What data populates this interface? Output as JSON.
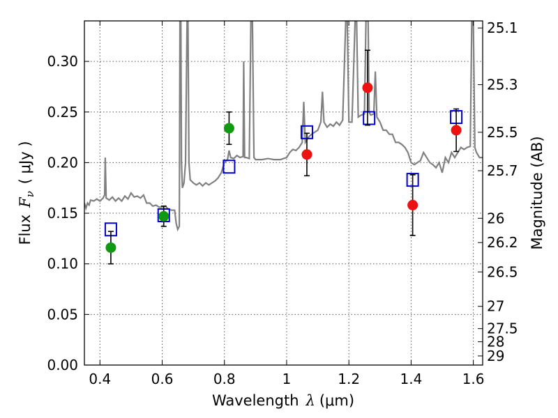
{
  "chart_data": {
    "type": "scatter",
    "title": "",
    "xlabel_text": "Wavelength",
    "xlabel_symbol": "λ",
    "xlabel_unit": "(μm)",
    "ylabel_text": "Flux",
    "ylabel_symbol": "F",
    "ylabel_sub": "ν",
    "ylabel_unit": "( μJy )",
    "y2label": "Magnitude (AB)",
    "xlim": [
      0.35,
      1.63
    ],
    "ylim": [
      0.0,
      0.34
    ],
    "grid": true,
    "x_ticks": [
      0.4,
      0.6,
      0.8,
      1.0,
      1.2,
      1.4,
      1.6
    ],
    "x_tick_labels": [
      "0.4",
      "0.6",
      "0.8",
      "1",
      "1.2",
      "1.4",
      "1.6"
    ],
    "y_ticks": [
      0.0,
      0.05,
      0.1,
      0.15,
      0.2,
      0.25,
      0.3
    ],
    "y_tick_labels": [
      "0.00",
      "0.05",
      "0.10",
      "0.15",
      "0.20",
      "0.25",
      "0.30"
    ],
    "mag_ticks": [
      {
        "label": "25.1",
        "flux": 0.333
      },
      {
        "label": "25.3",
        "flux": 0.277
      },
      {
        "label": "25.5",
        "flux": 0.23
      },
      {
        "label": "25.7",
        "flux": 0.192
      },
      {
        "label": "26",
        "flux": 0.145
      },
      {
        "label": "26.2",
        "flux": 0.121
      },
      {
        "label": "26.5",
        "flux": 0.092
      },
      {
        "label": "27",
        "flux": 0.058
      },
      {
        "label": "27.5",
        "flux": 0.036
      },
      {
        "label": "28",
        "flux": 0.023
      },
      {
        "label": "29",
        "flux": 0.009
      }
    ],
    "colors": {
      "spectrum": "#808080",
      "model_box": "#0000cc",
      "green_point": "#119911",
      "red_point": "#ee1111",
      "errorbar": "#000000",
      "grid": "#555555"
    },
    "series": [
      {
        "name": "model photometry",
        "marker": "open-square",
        "points": [
          {
            "x": 0.435,
            "y": 0.134
          },
          {
            "x": 0.605,
            "y": 0.148
          },
          {
            "x": 0.815,
            "y": 0.196
          },
          {
            "x": 1.065,
            "y": 0.23
          },
          {
            "x": 1.265,
            "y": 0.244
          },
          {
            "x": 1.405,
            "y": 0.183
          },
          {
            "x": 1.545,
            "y": 0.245
          }
        ]
      },
      {
        "name": "observed (green)",
        "marker": "filled-circle",
        "color_key": "green_point",
        "points": [
          {
            "x": 0.435,
            "y": 0.116,
            "err": 0.016
          },
          {
            "x": 0.605,
            "y": 0.147,
            "err": 0.01
          },
          {
            "x": 0.815,
            "y": 0.234,
            "err": 0.016
          }
        ]
      },
      {
        "name": "observed (red)",
        "marker": "filled-circle",
        "color_key": "red_point",
        "points": [
          {
            "x": 1.065,
            "y": 0.208,
            "err": 0.021
          },
          {
            "x": 1.26,
            "y": 0.274,
            "err": 0.037
          },
          {
            "x": 1.405,
            "y": 0.158,
            "err": 0.03
          },
          {
            "x": 1.545,
            "y": 0.232,
            "err": 0.021
          }
        ]
      }
    ],
    "spectrum": [
      [
        0.35,
        0.16
      ],
      [
        0.355,
        0.155
      ],
      [
        0.36,
        0.16
      ],
      [
        0.365,
        0.158
      ],
      [
        0.37,
        0.163
      ],
      [
        0.38,
        0.162
      ],
      [
        0.39,
        0.164
      ],
      [
        0.4,
        0.162
      ],
      [
        0.41,
        0.165
      ],
      [
        0.415,
        0.168
      ],
      [
        0.417,
        0.205
      ],
      [
        0.42,
        0.165
      ],
      [
        0.43,
        0.163
      ],
      [
        0.44,
        0.166
      ],
      [
        0.45,
        0.162
      ],
      [
        0.46,
        0.165
      ],
      [
        0.47,
        0.162
      ],
      [
        0.48,
        0.167
      ],
      [
        0.49,
        0.164
      ],
      [
        0.5,
        0.17
      ],
      [
        0.51,
        0.166
      ],
      [
        0.52,
        0.167
      ],
      [
        0.53,
        0.165
      ],
      [
        0.54,
        0.168
      ],
      [
        0.55,
        0.16
      ],
      [
        0.56,
        0.16
      ],
      [
        0.57,
        0.157
      ],
      [
        0.58,
        0.158
      ],
      [
        0.59,
        0.156
      ],
      [
        0.6,
        0.156
      ],
      [
        0.61,
        0.157
      ],
      [
        0.62,
        0.154
      ],
      [
        0.63,
        0.153
      ],
      [
        0.64,
        0.153
      ],
      [
        0.645,
        0.14
      ],
      [
        0.65,
        0.134
      ],
      [
        0.655,
        0.137
      ],
      [
        0.657,
        0.34
      ],
      [
        0.66,
        0.34
      ],
      [
        0.662,
        0.2
      ],
      [
        0.665,
        0.175
      ],
      [
        0.67,
        0.18
      ],
      [
        0.675,
        0.2
      ],
      [
        0.68,
        0.34
      ],
      [
        0.683,
        0.34
      ],
      [
        0.686,
        0.2
      ],
      [
        0.69,
        0.183
      ],
      [
        0.7,
        0.18
      ],
      [
        0.71,
        0.178
      ],
      [
        0.72,
        0.18
      ],
      [
        0.73,
        0.177
      ],
      [
        0.74,
        0.18
      ],
      [
        0.75,
        0.178
      ],
      [
        0.76,
        0.18
      ],
      [
        0.77,
        0.182
      ],
      [
        0.78,
        0.185
      ],
      [
        0.79,
        0.19
      ],
      [
        0.8,
        0.2
      ],
      [
        0.81,
        0.203
      ],
      [
        0.815,
        0.212
      ],
      [
        0.82,
        0.205
      ],
      [
        0.83,
        0.204
      ],
      [
        0.84,
        0.207
      ],
      [
        0.85,
        0.205
      ],
      [
        0.86,
        0.206
      ],
      [
        0.862,
        0.3
      ],
      [
        0.865,
        0.205
      ],
      [
        0.87,
        0.205
      ],
      [
        0.88,
        0.204
      ],
      [
        0.885,
        0.34
      ],
      [
        0.89,
        0.34
      ],
      [
        0.895,
        0.205
      ],
      [
        0.9,
        0.203
      ],
      [
        0.92,
        0.203
      ],
      [
        0.94,
        0.204
      ],
      [
        0.96,
        0.203
      ],
      [
        0.98,
        0.203
      ],
      [
        1.0,
        0.205
      ],
      [
        1.01,
        0.21
      ],
      [
        1.02,
        0.213
      ],
      [
        1.03,
        0.212
      ],
      [
        1.04,
        0.215
      ],
      [
        1.05,
        0.22
      ],
      [
        1.055,
        0.26
      ],
      [
        1.06,
        0.22
      ],
      [
        1.07,
        0.225
      ],
      [
        1.08,
        0.228
      ],
      [
        1.09,
        0.23
      ],
      [
        1.1,
        0.232
      ],
      [
        1.11,
        0.24
      ],
      [
        1.115,
        0.27
      ],
      [
        1.12,
        0.24
      ],
      [
        1.13,
        0.235
      ],
      [
        1.14,
        0.238
      ],
      [
        1.15,
        0.236
      ],
      [
        1.16,
        0.24
      ],
      [
        1.17,
        0.237
      ],
      [
        1.18,
        0.242
      ],
      [
        1.19,
        0.34
      ],
      [
        1.195,
        0.34
      ],
      [
        1.2,
        0.24
      ],
      [
        1.21,
        0.24
      ],
      [
        1.22,
        0.34
      ],
      [
        1.225,
        0.34
      ],
      [
        1.23,
        0.245
      ],
      [
        1.24,
        0.247
      ],
      [
        1.25,
        0.248
      ],
      [
        1.255,
        0.34
      ],
      [
        1.262,
        0.34
      ],
      [
        1.265,
        0.25
      ],
      [
        1.27,
        0.247
      ],
      [
        1.28,
        0.248
      ],
      [
        1.285,
        0.29
      ],
      [
        1.29,
        0.245
      ],
      [
        1.3,
        0.24
      ],
      [
        1.31,
        0.232
      ],
      [
        1.32,
        0.232
      ],
      [
        1.33,
        0.228
      ],
      [
        1.34,
        0.228
      ],
      [
        1.35,
        0.22
      ],
      [
        1.36,
        0.22
      ],
      [
        1.37,
        0.218
      ],
      [
        1.38,
        0.215
      ],
      [
        1.39,
        0.21
      ],
      [
        1.4,
        0.2
      ],
      [
        1.41,
        0.198
      ],
      [
        1.42,
        0.2
      ],
      [
        1.43,
        0.202
      ],
      [
        1.44,
        0.21
      ],
      [
        1.45,
        0.205
      ],
      [
        1.46,
        0.2
      ],
      [
        1.47,
        0.198
      ],
      [
        1.48,
        0.195
      ],
      [
        1.49,
        0.2
      ],
      [
        1.5,
        0.19
      ],
      [
        1.51,
        0.205
      ],
      [
        1.52,
        0.2
      ],
      [
        1.53,
        0.21
      ],
      [
        1.54,
        0.205
      ],
      [
        1.55,
        0.21
      ],
      [
        1.56,
        0.215
      ],
      [
        1.57,
        0.213
      ],
      [
        1.58,
        0.215
      ],
      [
        1.59,
        0.216
      ],
      [
        1.595,
        0.34
      ],
      [
        1.6,
        0.34
      ],
      [
        1.605,
        0.215
      ],
      [
        1.61,
        0.21
      ],
      [
        1.62,
        0.205
      ],
      [
        1.63,
        0.205
      ]
    ]
  }
}
